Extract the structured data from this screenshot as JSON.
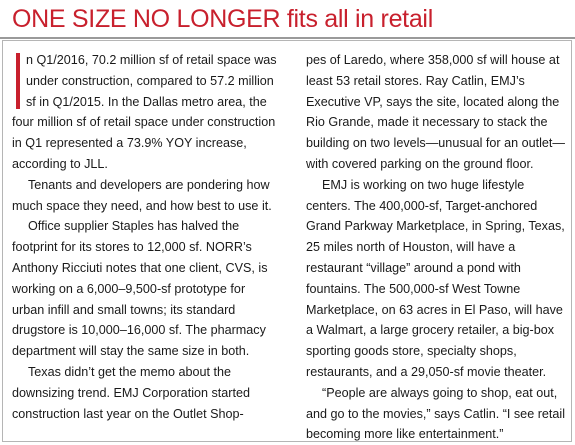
{
  "headline": "ONE SIZE NO LONGER fits all in retail",
  "left_column": [
    "n Q1/2016, 70.2 million sf of retail space was under construction, compared to 57.2 million sf in Q1/2015. In the Dallas metro area, the four million sf of retail space under construction in Q1 represented a 73.9% YOY increase, according to JLL.",
    "Tenants and developers are pondering how much space they need, and how best to use it.",
    "Office supplier Staples has halved the footprint for its stores to 12,000 sf. NORR’s Anthony Ricciuti notes that one client, CVS, is working on a 6,000–9,500-sf prototype for urban infill and small towns; its standard drugstore is 10,000–16,000 sf. The pharmacy department will stay the same size in both.",
    "Texas didn’t get the memo about the downsizing trend. EMJ Corporation started construction last year on the Outlet Shop-"
  ],
  "right_column": [
    "pes of Laredo, where 358,000 sf will house at least 53 retail stores. Ray Catlin, EMJ’s Executive VP, says the site, located along the Rio Grande, made it necessary to stack the building on two levels—unusual for an outlet—with covered parking on the ground floor.",
    "EMJ is working on two huge lifestyle centers. The 400,000-sf, Target-anchored Grand Parkway Marketplace, in Spring, Texas, 25 miles north of Houston, will have a restaurant “village” around a pond with fountains. The 500,000-sf West Towne Marketplace, on 63 acres in El Paso, will have a Walmart, a large grocery retailer, a big-box sporting goods store, specialty shops, restaurants, and a 29,050-sf movie theater.",
    "“People are always going to shop, eat out, and go to the movies,” says Catlin. “I see retail becoming more like entertainment.”"
  ]
}
